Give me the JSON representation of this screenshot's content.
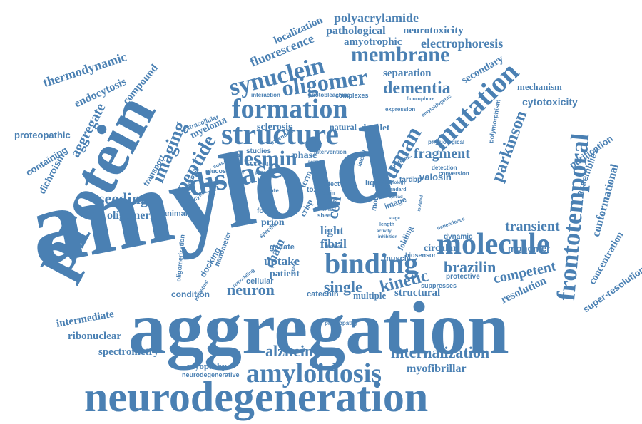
{
  "theme": {
    "word_color": "#4a80b3",
    "background": "#ffffff"
  },
  "words": [
    "amyloid",
    "aggregation",
    "protein",
    "neurodegeneration",
    "structure",
    "disease",
    "formation",
    "binding",
    "molecule",
    "amyloidosis",
    "mutation",
    "frontotemporal",
    "synuclein",
    "oligomer",
    "membrane",
    "human",
    "peptide",
    "desmin",
    "dementia",
    "parkinson",
    "imaging",
    "internalization",
    "alzheimer",
    "kinetic",
    "brazilin",
    "neuron",
    "transient",
    "fragment",
    "seeding",
    "single",
    "competent",
    "cell",
    "spectrometry",
    "intermediate",
    "uptake",
    "chain",
    "fibril",
    "light",
    "thermodynamic",
    "endocytosis",
    "aggregate",
    "compound",
    "fluorescence",
    "localization",
    "polyacrylamide",
    "pathological",
    "neurotoxicity",
    "amyotrophic",
    "electrophoresis",
    "separation",
    "secondary",
    "mechanism",
    "cytotoxicity",
    "conformational",
    "concentration",
    "super-resolution",
    "resolution",
    "monomer",
    "purification",
    "assemblies",
    "proteopathic",
    "containing",
    "dichroism",
    "ribonuclear",
    "myofibrillar",
    "myopathy",
    "neurodegenerative",
    "structural",
    "multiple",
    "catechin",
    "patient",
    "cellular",
    "condition",
    "docking",
    "nanometer",
    "oligomeric",
    "animal",
    "transport",
    "extracellular",
    "myeloma",
    "sclerosis",
    "natural",
    "droplet",
    "studies",
    "screen",
    "phase",
    "prion",
    "form",
    "gallate",
    "valosin",
    "circular",
    "dynamic",
    "protective",
    "biosensor",
    "suppresses",
    "muscle",
    "proteopathy",
    "complexes",
    "interaction",
    "photobleaching",
    "mouse",
    "image",
    "folding",
    "term",
    "crisp",
    "toxic",
    "liquid",
    "tardbp",
    "glucose",
    "neuronal",
    "endocytic",
    "initiate",
    "specific",
    "oligomerization",
    "polymorphism",
    "physiological",
    "extended",
    "intervention",
    "lateral",
    "systemic",
    "expression",
    "fluorophore",
    "amyloidogenic",
    "detection",
    "conversion",
    "susceptibility",
    "remodeling",
    "intrastrial",
    "effect",
    "brain",
    "time",
    "sheet",
    "state",
    "standard",
    "length",
    "activity",
    "dependence",
    "inhibition",
    "pathology",
    "isolated",
    "distinct",
    "stage",
    "spread",
    "permit",
    "ribbon",
    "pattern",
    "region"
  ]
}
